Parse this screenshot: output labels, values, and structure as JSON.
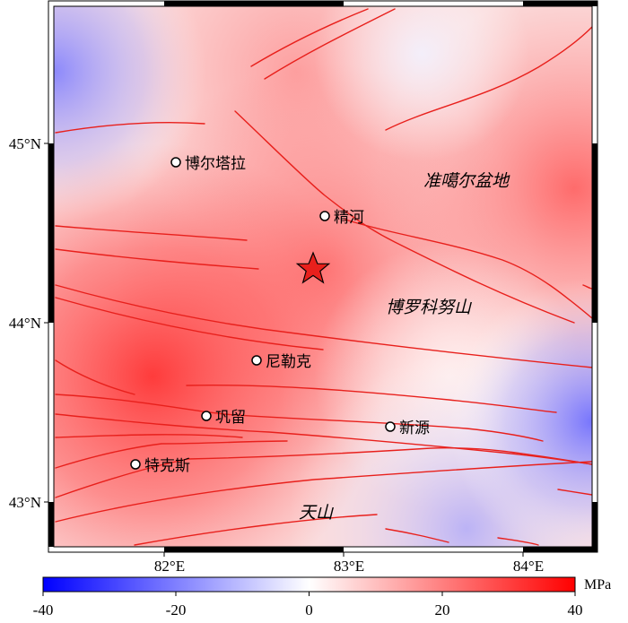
{
  "map": {
    "lat_ticks": [
      "45°N",
      "44°N",
      "43°N"
    ],
    "lon_ticks": [
      "82°E",
      "83°E",
      "84°E"
    ],
    "cities": [
      {
        "name": "博尔塔拉"
      },
      {
        "name": "精河"
      },
      {
        "name": "尼勒克"
      },
      {
        "name": "巩留"
      },
      {
        "name": "新源"
      },
      {
        "name": "特克斯"
      }
    ],
    "regions": [
      {
        "name": "准噶尔盆地"
      },
      {
        "name": "博罗科努山"
      },
      {
        "name": "天山"
      }
    ],
    "epicenter_icon": "star-icon",
    "epicenter_color": "#e8201c",
    "fault_color": "#e8201c"
  },
  "colorbar": {
    "unit": "MPa",
    "min": -40,
    "max": 40,
    "ticks": [
      "-40",
      "-20",
      "0",
      "20",
      "40"
    ],
    "colors": [
      "#0000ff",
      "#ffffff",
      "#ff0000"
    ]
  }
}
